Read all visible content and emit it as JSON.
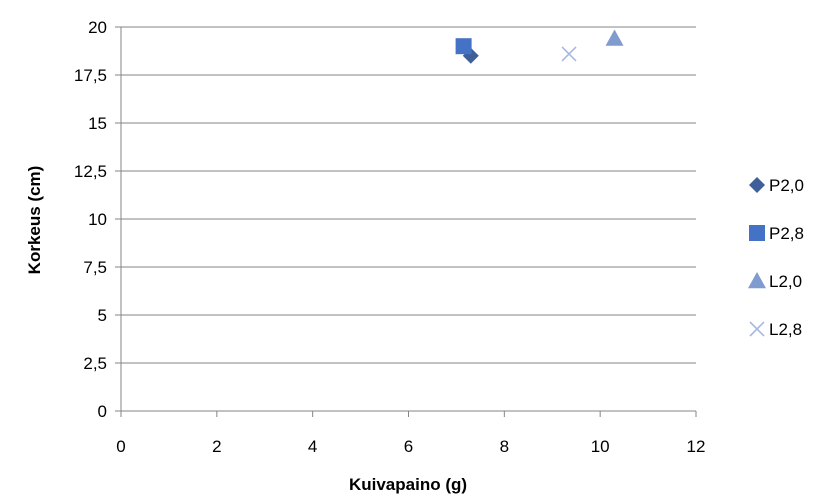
{
  "chart_data": {
    "type": "scatter",
    "title": "",
    "xlabel": "Kuivapaino (g)",
    "ylabel": "Korkeus (cm)",
    "xlim": [
      0,
      12
    ],
    "ylim": [
      0,
      20
    ],
    "x_ticks": [
      "0",
      "2",
      "4",
      "6",
      "8",
      "10",
      "12"
    ],
    "y_ticks": [
      "0",
      "2,5",
      "5",
      "7,5",
      "10",
      "12,5",
      "15",
      "17,5",
      "20"
    ],
    "grid": "horizontal",
    "legend_position": "right",
    "series": [
      {
        "name": "P2,0",
        "marker": "diamond",
        "color": "#3F5F9A",
        "points": [
          {
            "x": 7.3,
            "y": 18.5
          }
        ]
      },
      {
        "name": "P2,8",
        "marker": "square",
        "color": "#4472C4",
        "points": [
          {
            "x": 7.15,
            "y": 19.0
          }
        ]
      },
      {
        "name": "L2,0",
        "marker": "triangle",
        "color": "#7F9BCF",
        "points": [
          {
            "x": 10.3,
            "y": 19.4
          }
        ]
      },
      {
        "name": "L2,8",
        "marker": "x",
        "color": "#A7B9E0",
        "points": [
          {
            "x": 9.35,
            "y": 18.6
          }
        ]
      }
    ]
  }
}
